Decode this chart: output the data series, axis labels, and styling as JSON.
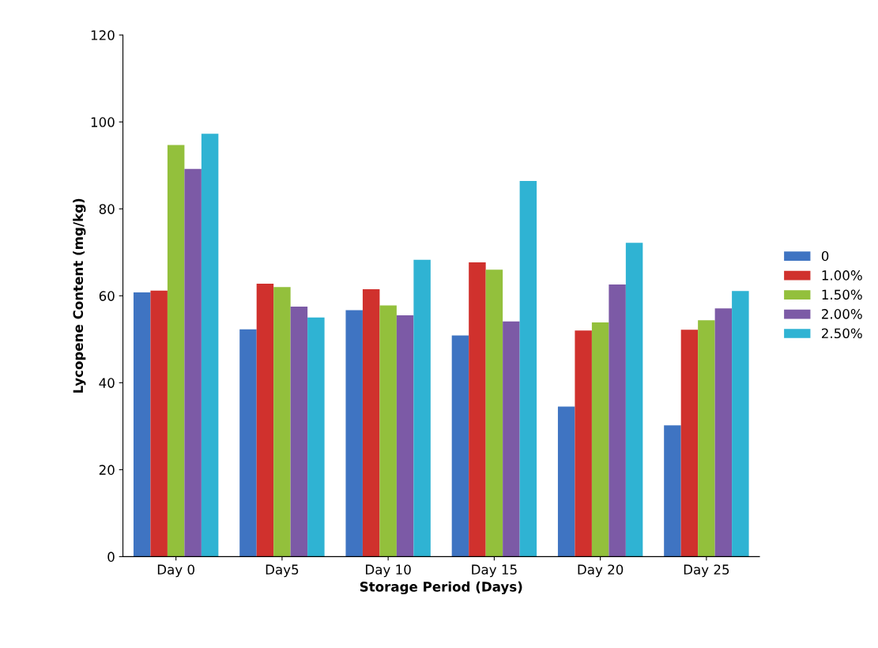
{
  "chart_data": {
    "type": "bar",
    "xlabel": "Storage Period (Days)",
    "ylabel": "Lycopene Content (mg/kg)",
    "categories": [
      "Day 0",
      "Day5",
      "Day 10",
      "Day 15",
      "Day 20",
      "Day 25"
    ],
    "series": [
      {
        "name": "0",
        "color": "#3f74c2",
        "values": [
          60.8,
          52.3,
          56.7,
          50.9,
          34.5,
          30.2
        ]
      },
      {
        "name": "1.00%",
        "color": "#d0312d",
        "values": [
          61.2,
          62.8,
          61.5,
          67.7,
          52.0,
          52.2
        ]
      },
      {
        "name": "1.50%",
        "color": "#93c03c",
        "values": [
          94.7,
          62.0,
          57.8,
          66.0,
          53.9,
          54.4
        ]
      },
      {
        "name": "2.00%",
        "color": "#7c5aa6",
        "values": [
          89.2,
          57.5,
          55.5,
          54.1,
          62.6,
          57.1
        ]
      },
      {
        "name": "2.50%",
        "color": "#2fb3d3",
        "values": [
          97.3,
          55.0,
          68.3,
          86.4,
          72.2,
          61.1
        ]
      }
    ],
    "ylim": [
      0,
      120
    ],
    "yticks": [
      0,
      20,
      40,
      60,
      80,
      100,
      120
    ],
    "grid": false,
    "legend": "right"
  }
}
